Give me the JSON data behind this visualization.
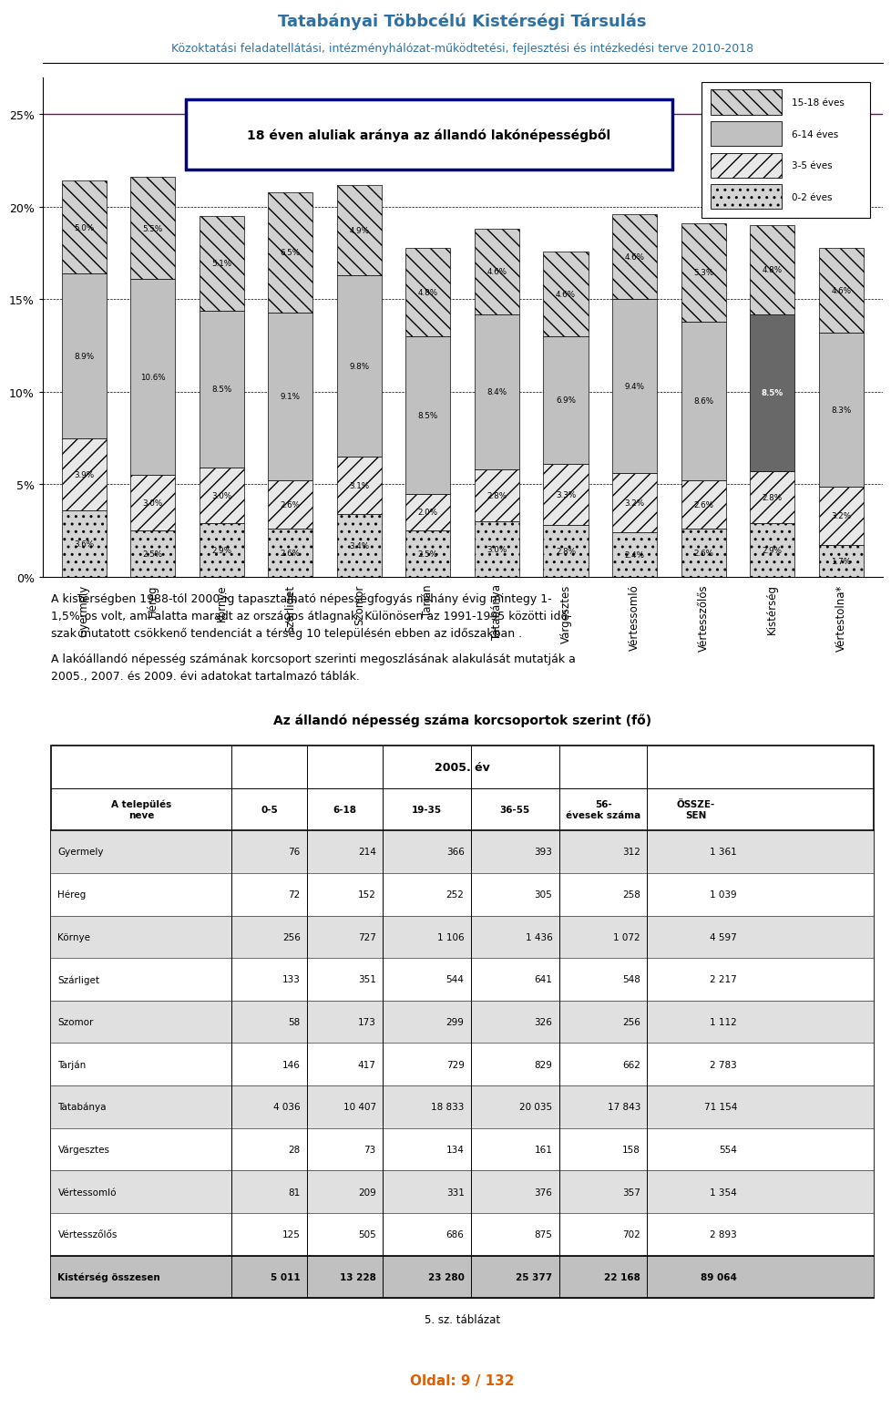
{
  "title_line1": "Tatabányai Többcélú Kistérségi Társulás",
  "title_line2": "Közoktatási feladatellátási, intézményhálózat-működtetési, fejlesztési és intézkedési terve 2010-2018",
  "chart_title": "18 éven aluliak aránya az állandó lakónépességből",
  "categories": [
    "Gyermely",
    "Héreg",
    "Környe",
    "Szárliget",
    "Szomor",
    "Tarján",
    "Tatabánya",
    "Várgesztes",
    "Vértessomló",
    "Vértesszőlős",
    "Kistérség",
    "Vértestolna*"
  ],
  "legend_labels": [
    "15-18 éves",
    "6-14 éves",
    "3-5 éves",
    "0-2 éves"
  ],
  "data_0_2": [
    3.6,
    2.5,
    2.9,
    2.6,
    3.4,
    2.5,
    3.0,
    2.8,
    2.4,
    2.6,
    2.9,
    1.7
  ],
  "data_3_5": [
    3.9,
    3.0,
    3.0,
    2.6,
    3.1,
    2.0,
    2.8,
    3.3,
    3.2,
    2.6,
    2.8,
    3.2
  ],
  "data_6_14": [
    8.9,
    10.6,
    8.5,
    9.1,
    9.8,
    8.5,
    8.4,
    6.9,
    9.4,
    8.6,
    8.5,
    8.3
  ],
  "data_15_18": [
    5.0,
    5.5,
    5.1,
    6.5,
    4.9,
    4.8,
    4.6,
    4.6,
    4.6,
    5.3,
    4.8,
    4.6
  ],
  "ylim": [
    0,
    27
  ],
  "yticks": [
    0,
    5,
    10,
    15,
    20,
    25
  ],
  "yticklabels": [
    "0%",
    "5%",
    "10%",
    "15%",
    "20%",
    "25%"
  ],
  "header_color": "#3070a0",
  "paragraph1": "A kistérségben 1988-tól 2000-ig tapasztalható népességfogyás néhány évig mintegy 1-\n1,5%-os volt, ami alatta maradt az országos átlagnak. Különösen az 1991-1995 közötti idő-\nszak mutatott csökkenő tendenciát a térség 10 településén ebben az időszakban .",
  "paragraph2": "A lakóállandó népesség számának korcsoport szerinti megoszlásának alakulását mutatják a\n2005., 2007. és 2009. évi adatokat tartalmazó táblák.",
  "table_title": "Az állandó népesség száma korcsoportok szerint (fő)",
  "table_subtitle": "2005. év",
  "table_rows": [
    [
      "Gyermely",
      "76",
      "214",
      "366",
      "393",
      "312",
      "1 361"
    ],
    [
      "Héreg",
      "72",
      "152",
      "252",
      "305",
      "258",
      "1 039"
    ],
    [
      "Környe",
      "256",
      "727",
      "1 106",
      "1 436",
      "1 072",
      "4 597"
    ],
    [
      "Szárliget",
      "133",
      "351",
      "544",
      "641",
      "548",
      "2 217"
    ],
    [
      "Szomor",
      "58",
      "173",
      "299",
      "326",
      "256",
      "1 112"
    ],
    [
      "Tarján",
      "146",
      "417",
      "729",
      "829",
      "662",
      "2 783"
    ],
    [
      "Tatabánya",
      "4 036",
      "10 407",
      "18 833",
      "20 035",
      "17 843",
      "71 154"
    ],
    [
      "Várgesztes",
      "28",
      "73",
      "134",
      "161",
      "158",
      "554"
    ],
    [
      "Vértessomló",
      "81",
      "209",
      "331",
      "376",
      "357",
      "1 354"
    ],
    [
      "Vértesszőlős",
      "125",
      "505",
      "686",
      "875",
      "702",
      "2 893"
    ]
  ],
  "table_footer_row": [
    "Kistérség összesen",
    "5 011",
    "13 228",
    "23 280",
    "25 377",
    "22 168",
    "89 064"
  ],
  "table_note": "5. sz. táblázat",
  "page_text": "Oldal: 9 / 132"
}
